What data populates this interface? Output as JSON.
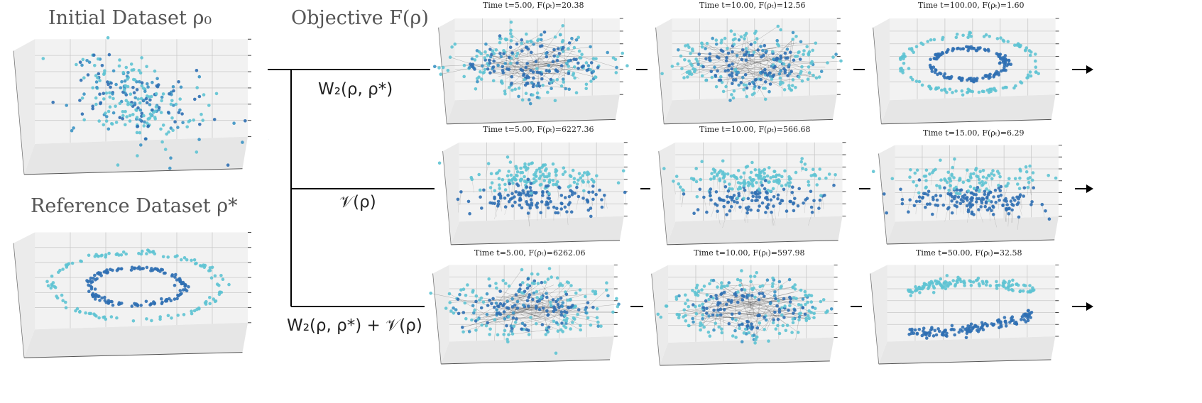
{
  "titles": {
    "initial": "Initial Dataset ρ₀",
    "reference": "Reference Dataset ρ*",
    "objective": "Objective F(ρ)"
  },
  "branches": [
    {
      "label": "W₂(ρ, ρ*)",
      "panels": [
        {
          "title": "Time t=5.00,  F(ρₜ)=20.38",
          "shape": "ring-mixed"
        },
        {
          "title": "Time t=10.00,  F(ρₜ)=12.56",
          "shape": "ring-mixed2"
        },
        {
          "title": "Time t=100.00,  F(ρₜ)=1.60",
          "shape": "ring-clean"
        }
      ]
    },
    {
      "label": "𝒱(ρ)",
      "panels": [
        {
          "title": "Time t=5.00,  F(ρₜ)=6227.36",
          "shape": "layers"
        },
        {
          "title": "Time t=10.00,  F(ρₜ)=566.68",
          "shape": "layers"
        },
        {
          "title": "Time t=15.00,  F(ρₜ)=6.29",
          "shape": "layers"
        }
      ]
    },
    {
      "label": "W₂(ρ, ρ*) + 𝒱(ρ)",
      "panels": [
        {
          "title": "Time t=5.00,  F(ρₜ)=6262.06",
          "shape": "ring-mixed"
        },
        {
          "title": "Time t=10.00,  F(ρₜ)=597.98",
          "shape": "ring-mixed2"
        },
        {
          "title": "Time t=50.00,  F(ρₜ)=32.58",
          "shape": "arcs"
        }
      ]
    }
  ],
  "colors": {
    "light": "#5ec3d3",
    "dark": "#2f6fb3",
    "mid": "#3c93c4",
    "grid": "#c9c9c9",
    "pane": "#f2f2f2"
  }
}
